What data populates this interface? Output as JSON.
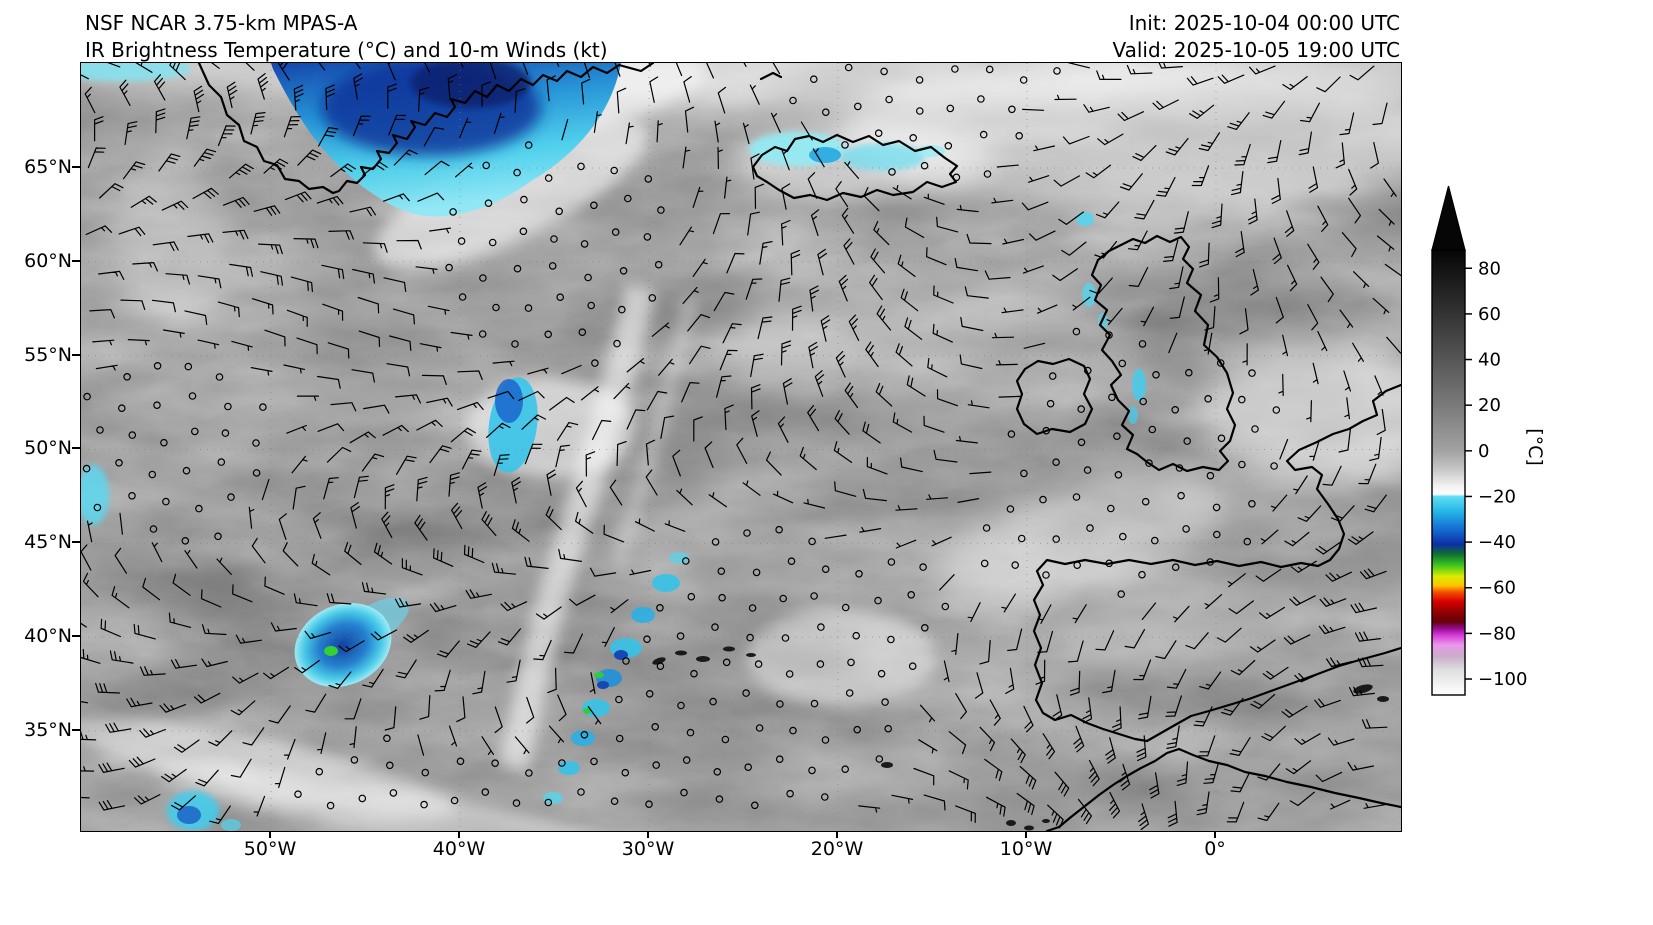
{
  "header": {
    "model": "NSF NCAR 3.75-km MPAS-A",
    "product": "IR Brightness Temperature (°C) and 10-m Winds (kt)",
    "init": "Init: 2025-10-04 00:00 UTC",
    "valid": "Valid: 2025-10-05 19:00 UTC"
  },
  "chart_data": {
    "type": "heatmap",
    "title": "IR Brightness Temperature (°C) and 10-m Winds (kt)",
    "subtitle": "NSF NCAR 3.75-km MPAS-A",
    "init_time": "2025-10-04 00:00 UTC",
    "valid_time": "2025-10-05 19:00 UTC",
    "region": "North Atlantic: Greenland, Iceland, British Isles, Iberia, NW Africa",
    "x_ticks": [
      "50°W",
      "40°W",
      "30°W",
      "20°W",
      "10°W",
      "0°"
    ],
    "y_ticks": [
      "65°N",
      "60°N",
      "55°N",
      "50°N",
      "45°N",
      "40°N",
      "35°N"
    ],
    "grid": "faint dotted graticule at labeled ticks",
    "legend_position": "vertical colorbar right of map",
    "colorbar": {
      "label": "[°C]",
      "ticks": [
        "80",
        "60",
        "40",
        "20",
        "0",
        "−20",
        "−40",
        "−60",
        "−80",
        "−100"
      ],
      "tick_values": [
        80,
        60,
        40,
        20,
        0,
        -20,
        -40,
        -60,
        -80,
        -100
      ],
      "bar_range": [
        88,
        -107
      ],
      "over_arrow": true,
      "stops": [
        {
          "v": 88,
          "c": "#060606"
        },
        {
          "v": 60,
          "c": "#333333"
        },
        {
          "v": 40,
          "c": "#565656"
        },
        {
          "v": 20,
          "c": "#7a7a7a"
        },
        {
          "v": 0,
          "c": "#a2a2a2"
        },
        {
          "v": -8,
          "c": "#c6c6c6"
        },
        {
          "v": -15,
          "c": "#efefef"
        },
        {
          "v": -19,
          "c": "#ffffff"
        },
        {
          "v": -20,
          "c": "#5fdef2"
        },
        {
          "v": -27,
          "c": "#23b2e6"
        },
        {
          "v": -34,
          "c": "#1670d4"
        },
        {
          "v": -41,
          "c": "#0c2ea6"
        },
        {
          "v": -45,
          "c": "#0f6b34"
        },
        {
          "v": -50,
          "c": "#39c41e"
        },
        {
          "v": -55,
          "c": "#d8ec00"
        },
        {
          "v": -59,
          "c": "#ffc400"
        },
        {
          "v": -62,
          "c": "#f44d00"
        },
        {
          "v": -66,
          "c": "#d80000"
        },
        {
          "v": -71,
          "c": "#8d0000"
        },
        {
          "v": -75,
          "c": "#65000a"
        },
        {
          "v": -78,
          "c": "#970d97"
        },
        {
          "v": -81,
          "c": "#d83fd8"
        },
        {
          "v": -85,
          "c": "#ea96ea"
        },
        {
          "v": -90,
          "c": "#c9adc9"
        },
        {
          "v": -96,
          "c": "#dfdfdf"
        },
        {
          "v": -107,
          "c": "#ffffff"
        }
      ]
    },
    "wind_barbs": {
      "units": "kt",
      "spacing": 33,
      "shaft_length": 21,
      "color": "#000000",
      "calm_symbol": "open circle"
    },
    "field_description": "Grayscale IR brightness temperature (warm/clear = gray-to-dark); cyan-to-deep-blue cold cloud tops below -20C over SE Greenland, Iceland, a mid-Atlantic frontal band near 30W, and a convective cluster near 46W 40N with small green cores near -50C"
  },
  "colors": {
    "background_gray": "#a9a9a9",
    "cold_cyan": "#5fdef2",
    "cold_deep_blue": "#0c2ea6",
    "convective_green": "#39c41e",
    "coastline": "#000000"
  }
}
